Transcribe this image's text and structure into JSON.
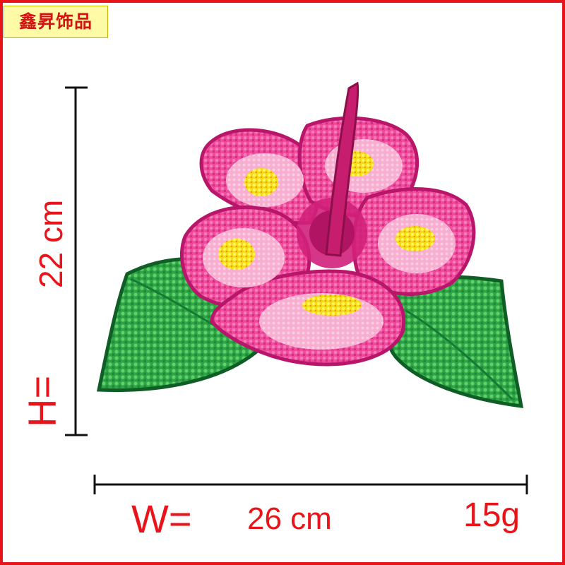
{
  "brand": {
    "text": "鑫昇饰品"
  },
  "dimensions": {
    "height_label": "H=",
    "height_value": "22 cm",
    "width_label": "W=",
    "width_value": "26 cm",
    "weight": "15g"
  },
  "colors": {
    "frame": "#e8141a",
    "brand_bg": "#fefaa6",
    "petal": "#f0479c",
    "petal_light": "#f9b4d4",
    "center_yellow": "#f4e21c",
    "leaf": "#33b44a",
    "leaf_dark": "#16782e"
  },
  "icons": [
    "sequin-hibiscus-patch"
  ]
}
